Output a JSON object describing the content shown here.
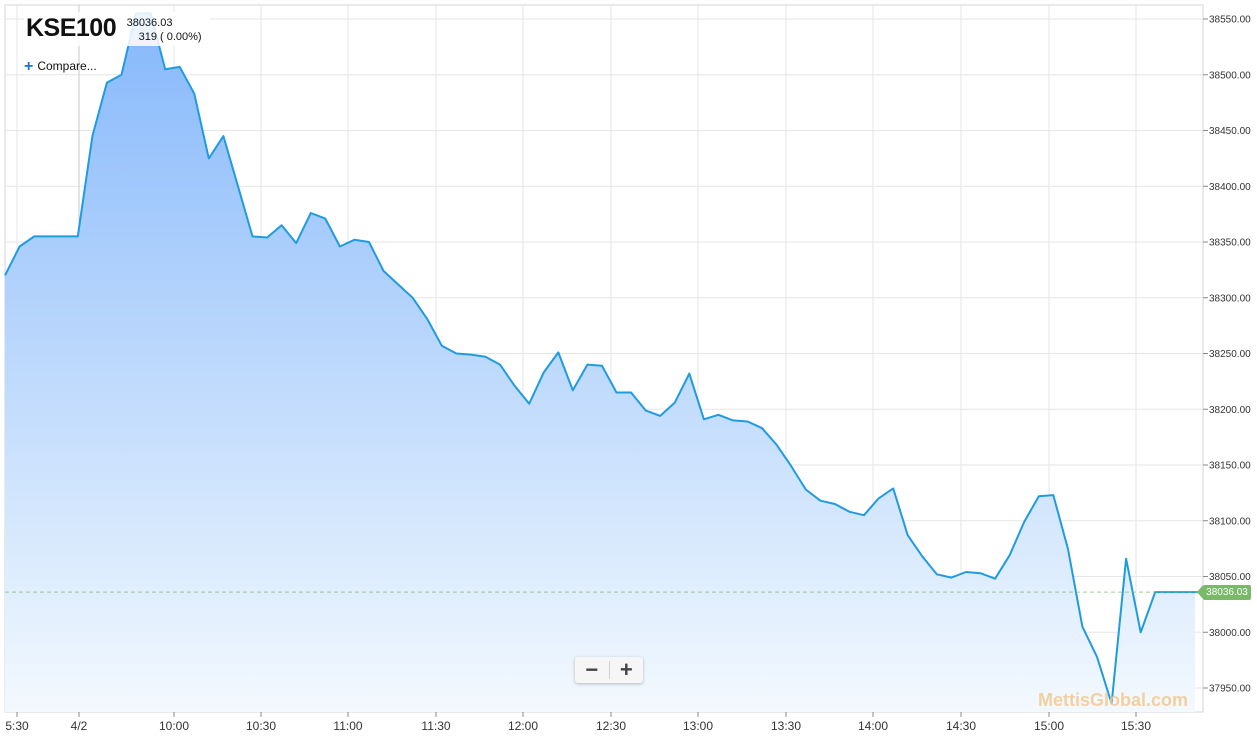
{
  "header": {
    "symbol": "KSE100",
    "price": "38036.03",
    "change": "319 ( 0.00%)",
    "compare_label": "Compare..."
  },
  "zoom": {
    "minus": "−",
    "plus": "+"
  },
  "watermark": "MettisGlobal.com",
  "last_price_label": "38036.03",
  "colors": {
    "line": "#1f9be0",
    "fill_top": "#86b8fb",
    "fill_bottom": "#f3f9fe",
    "last_price": "#7ab96a",
    "grid": "#e6e6e6"
  },
  "chart_data": {
    "type": "area",
    "title": "KSE100",
    "ylim": [
      37925,
      38560
    ],
    "y_ticks": [
      "38550.00",
      "38500.00",
      "38450.00",
      "38400.00",
      "38350.00",
      "38300.00",
      "38250.00",
      "38200.00",
      "38150.00",
      "38100.00",
      "38050.00",
      "38000.00",
      "37950.00"
    ],
    "x_ticks": [
      "5:30",
      "4/2",
      "10:00",
      "10:30",
      "11:00",
      "11:30",
      "12:00",
      "12:30",
      "13:00",
      "13:30",
      "14:00",
      "14:30",
      "15:00",
      "15:30"
    ],
    "last_price": 38036.03,
    "grid": true,
    "series": [
      {
        "values": [
          38320,
          38346,
          38355,
          38355,
          38355,
          38355,
          38445,
          38493,
          38500,
          38555,
          38555,
          38505,
          38507,
          38483,
          38425,
          38445,
          38400,
          38355,
          38354,
          38365,
          38349,
          38376,
          38371,
          38346,
          38352,
          38350,
          38324,
          38312,
          38300,
          38281,
          38257,
          38250,
          38249,
          38247,
          38240,
          38221,
          38205,
          38233,
          38251,
          38217,
          38240,
          38239,
          38215,
          38215,
          38199,
          38194,
          38206,
          38232,
          38191,
          38195,
          38190,
          38189,
          38183,
          38168,
          38149,
          38128,
          38118,
          38115,
          38108,
          38105,
          38120,
          38129,
          38087,
          38068,
          38052,
          38049,
          38054,
          38053,
          38048,
          38069,
          38099,
          38122,
          38123,
          38075,
          38005,
          37978,
          37936,
          38066,
          38000,
          38036,
          38036,
          38036,
          38036,
          38036
        ]
      }
    ]
  }
}
